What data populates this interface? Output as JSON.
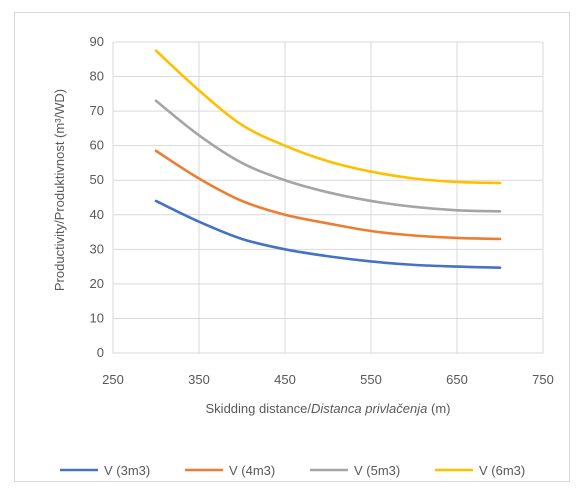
{
  "chart_data": {
    "type": "line",
    "title": "",
    "xlabel_plain": "Skidding distance/",
    "xlabel_italic": "Distanca privlačenja",
    "xlabel_unit": " (m)",
    "ylabel": "Productivity/Produktivnost (m³/WD)",
    "xlim": [
      250,
      750
    ],
    "ylim": [
      0,
      90
    ],
    "xticks": [
      250,
      350,
      450,
      550,
      650,
      750
    ],
    "yticks": [
      0,
      10,
      20,
      30,
      40,
      50,
      60,
      70,
      80,
      90
    ],
    "grid": true,
    "legend_position": "bottom",
    "x": [
      300,
      350,
      400,
      450,
      500,
      550,
      600,
      650,
      700
    ],
    "series": [
      {
        "name": "V (3m3)",
        "color": "#4472c4",
        "values": [
          44,
          38,
          33,
          30,
          28,
          26.5,
          25.5,
          25,
          24.7
        ]
      },
      {
        "name": "V (4m3)",
        "color": "#ed7d31",
        "values": [
          58.5,
          50.5,
          44,
          40,
          37.5,
          35.3,
          34,
          33.3,
          33
        ]
      },
      {
        "name": "V (5m3)",
        "color": "#a5a5a5",
        "values": [
          73,
          63,
          55,
          50,
          46.5,
          44,
          42.3,
          41.3,
          41
        ]
      },
      {
        "name": "V (6m3)",
        "color": "#ffc000",
        "values": [
          87.5,
          76,
          66,
          60,
          55.5,
          52.5,
          50.5,
          49.5,
          49.2
        ]
      }
    ]
  }
}
